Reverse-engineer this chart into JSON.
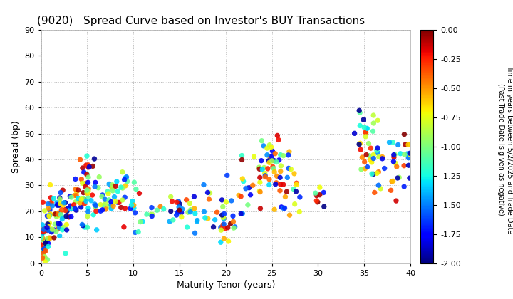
{
  "title": "(9020)   Spread Curve based on Investor's BUY Transactions",
  "xlabel": "Maturity Tenor (years)",
  "ylabel": "Spread (bp)",
  "colorbar_label": "Time in years between 5/2/2025 and Trade Date\n(Past Trade Date is given as negative)",
  "xlim": [
    0,
    40
  ],
  "ylim": [
    0,
    90
  ],
  "xticks": [
    0,
    5,
    10,
    15,
    20,
    25,
    30,
    35,
    40
  ],
  "yticks": [
    0,
    10,
    20,
    30,
    40,
    50,
    60,
    70,
    80,
    90
  ],
  "cmap": "jet",
  "vmin": -2.0,
  "vmax": 0.0,
  "colorbar_ticks": [
    0.0,
    -0.25,
    -0.5,
    -0.75,
    -1.0,
    -1.25,
    -1.5,
    -1.75,
    -2.0
  ],
  "marker_size": 28,
  "background_color": "#ffffff",
  "grid_color": "#bbbbbb",
  "seed": 42,
  "clusters": [
    {
      "x_center": 0.3,
      "x_spread": 0.25,
      "y_center": 8,
      "y_spread": 5,
      "n": 35
    },
    {
      "x_center": 1.0,
      "x_spread": 0.3,
      "y_center": 15,
      "y_spread": 6,
      "n": 30
    },
    {
      "x_center": 1.8,
      "x_spread": 0.3,
      "y_center": 18,
      "y_spread": 5,
      "n": 25
    },
    {
      "x_center": 2.5,
      "x_spread": 0.3,
      "y_center": 20,
      "y_spread": 5,
      "n": 20
    },
    {
      "x_center": 3.5,
      "x_spread": 0.4,
      "y_center": 22,
      "y_spread": 5,
      "n": 15
    },
    {
      "x_center": 4.5,
      "x_spread": 0.4,
      "y_center": 24,
      "y_spread": 7,
      "n": 20
    },
    {
      "x_center": 5.0,
      "x_spread": 0.4,
      "y_center": 27,
      "y_spread": 7,
      "n": 20
    },
    {
      "x_center": 6.0,
      "x_spread": 0.4,
      "y_center": 26,
      "y_spread": 6,
      "n": 15
    },
    {
      "x_center": 7.0,
      "x_spread": 0.4,
      "y_center": 26,
      "y_spread": 6,
      "n": 15
    },
    {
      "x_center": 8.0,
      "x_spread": 0.4,
      "y_center": 25,
      "y_spread": 5,
      "n": 15
    },
    {
      "x_center": 9.0,
      "x_spread": 0.4,
      "y_center": 27,
      "y_spread": 6,
      "n": 12
    },
    {
      "x_center": 10.0,
      "x_spread": 0.4,
      "y_center": 22,
      "y_spread": 6,
      "n": 12
    },
    {
      "x_center": 12.0,
      "x_spread": 0.5,
      "y_center": 21,
      "y_spread": 4,
      "n": 8
    },
    {
      "x_center": 14.5,
      "x_spread": 0.4,
      "y_center": 21,
      "y_spread": 4,
      "n": 10
    },
    {
      "x_center": 15.5,
      "x_spread": 0.4,
      "y_center": 20,
      "y_spread": 4,
      "n": 10
    },
    {
      "x_center": 16.5,
      "x_spread": 0.4,
      "y_center": 19,
      "y_spread": 4,
      "n": 8
    },
    {
      "x_center": 18.0,
      "x_spread": 0.4,
      "y_center": 20,
      "y_spread": 4,
      "n": 8
    },
    {
      "x_center": 19.5,
      "x_spread": 0.5,
      "y_center": 17,
      "y_spread": 7,
      "n": 15
    },
    {
      "x_center": 20.5,
      "x_spread": 0.4,
      "y_center": 20,
      "y_spread": 6,
      "n": 12
    },
    {
      "x_center": 22.0,
      "x_spread": 0.5,
      "y_center": 25,
      "y_spread": 7,
      "n": 10
    },
    {
      "x_center": 23.5,
      "x_spread": 0.5,
      "y_center": 33,
      "y_spread": 8,
      "n": 15
    },
    {
      "x_center": 25.0,
      "x_spread": 0.5,
      "y_center": 40,
      "y_spread": 5,
      "n": 20
    },
    {
      "x_center": 25.5,
      "x_spread": 0.5,
      "y_center": 35,
      "y_spread": 7,
      "n": 15
    },
    {
      "x_center": 26.5,
      "x_spread": 0.5,
      "y_center": 31,
      "y_spread": 6,
      "n": 12
    },
    {
      "x_center": 27.5,
      "x_spread": 0.5,
      "y_center": 29,
      "y_spread": 5,
      "n": 10
    },
    {
      "x_center": 30.0,
      "x_spread": 0.5,
      "y_center": 27,
      "y_spread": 5,
      "n": 8
    },
    {
      "x_center": 35.0,
      "x_spread": 0.5,
      "y_center": 48,
      "y_spread": 7,
      "n": 25
    },
    {
      "x_center": 36.5,
      "x_spread": 0.5,
      "y_center": 40,
      "y_spread": 8,
      "n": 20
    },
    {
      "x_center": 38.5,
      "x_spread": 0.5,
      "y_center": 38,
      "y_spread": 7,
      "n": 20
    },
    {
      "x_center": 40.0,
      "x_spread": 0.3,
      "y_center": 42,
      "y_spread": 7,
      "n": 18
    }
  ]
}
